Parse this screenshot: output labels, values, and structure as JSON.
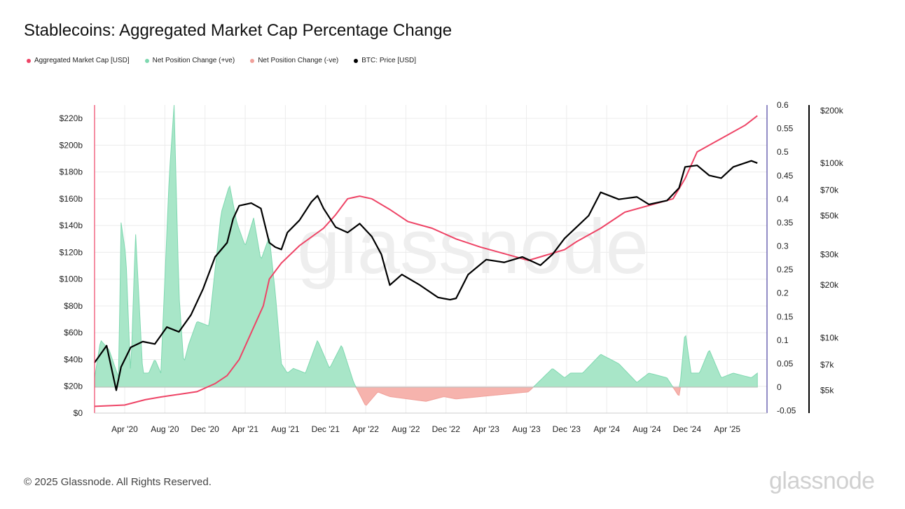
{
  "title": "Stablecoins: Aggregated Market Cap Percentage Change",
  "footer": "© 2025 Glassnode. All Rights Reserved.",
  "brand": "glassnode",
  "watermark": "glassnode",
  "legend": [
    {
      "label": "Aggregated Market Cap [USD]",
      "color": "#ee4466"
    },
    {
      "label": "Net Position Change (+ve)",
      "color": "#7fd8b0"
    },
    {
      "label": "Net Position Change (-ve)",
      "color": "#f0a09a"
    },
    {
      "label": "BTC: Price [USD]",
      "color": "#000000"
    }
  ],
  "chart_data": {
    "type": "line",
    "title": "Stablecoins: Aggregated Market Cap Percentage Change",
    "x_range": [
      "2020-01",
      "2025-06"
    ],
    "x_ticks": [
      "Apr '20",
      "Aug '20",
      "Dec '20",
      "Apr '21",
      "Aug '21",
      "Dec '21",
      "Apr '22",
      "Aug '22",
      "Dec '22",
      "Apr '23",
      "Aug '23",
      "Dec '23",
      "Apr '24",
      "Aug '24",
      "Dec '24",
      "Apr '25"
    ],
    "y_left": {
      "label": "Aggregated Market Cap [USD]",
      "ticks": [
        "$0",
        "$20b",
        "$40b",
        "$60b",
        "$80b",
        "$100b",
        "$120b",
        "$140b",
        "$160b",
        "$180b",
        "$200b",
        "$220b"
      ],
      "range": [
        0,
        230
      ]
    },
    "y_right": {
      "label": "Net Position Change",
      "ticks": [
        "-0.05",
        "0",
        "0.05",
        "0.1",
        "0.15",
        "0.2",
        "0.25",
        "0.3",
        "0.35",
        "0.4",
        "0.45",
        "0.5",
        "0.55",
        "0.6"
      ],
      "range": [
        -0.055,
        0.6
      ]
    },
    "y_right2": {
      "label": "BTC: Price [USD]",
      "scale": "log",
      "ticks": [
        "$5k",
        "$7k",
        "$10k",
        "$20k",
        "$30k",
        "$50k",
        "$70k",
        "$100k",
        "$200k"
      ],
      "tick_values": [
        5000,
        7000,
        10000,
        20000,
        30000,
        50000,
        70000,
        100000,
        200000
      ]
    },
    "series": [
      {
        "name": "Aggregated Market Cap [USD]",
        "axis": "left",
        "color": "#ee4466",
        "t": [
          2020.0,
          2020.25,
          2020.42,
          2020.55,
          2020.7,
          2020.85,
          2021.0,
          2021.1,
          2021.2,
          2021.3,
          2021.4,
          2021.45,
          2021.55,
          2021.7,
          2021.9,
          2022.0,
          2022.1,
          2022.2,
          2022.3,
          2022.45,
          2022.6,
          2022.8,
          2023.0,
          2023.2,
          2023.4,
          2023.6,
          2023.75,
          2023.9,
          2024.0,
          2024.2,
          2024.4,
          2024.6,
          2024.8,
          2024.9,
          2025.0,
          2025.2,
          2025.4,
          2025.5
        ],
        "values": [
          5,
          6,
          10,
          12,
          14,
          16,
          22,
          28,
          40,
          60,
          80,
          100,
          112,
          125,
          138,
          148,
          160,
          162,
          160,
          152,
          143,
          138,
          130,
          124,
          119,
          114,
          118,
          122,
          128,
          138,
          150,
          155,
          160,
          175,
          195,
          205,
          215,
          222
        ]
      },
      {
        "name": "Net Position Change (+ve/-ve)",
        "axis": "right",
        "type": "area",
        "t": [
          2020.0,
          2020.05,
          2020.12,
          2020.2,
          2020.22,
          2020.26,
          2020.3,
          2020.34,
          2020.4,
          2020.45,
          2020.5,
          2020.55,
          2020.62,
          2020.66,
          2020.7,
          2020.74,
          2020.78,
          2020.85,
          2020.95,
          2021.05,
          2021.12,
          2021.18,
          2021.25,
          2021.32,
          2021.38,
          2021.45,
          2021.5,
          2021.55,
          2021.6,
          2021.65,
          2021.75,
          2021.85,
          2021.95,
          2022.05,
          2022.15,
          2022.25,
          2022.35,
          2022.45,
          2022.6,
          2022.75,
          2022.9,
          2023.0,
          2023.2,
          2023.4,
          2023.6,
          2023.8,
          2023.9,
          2023.95,
          2024.05,
          2024.2,
          2024.35,
          2024.5,
          2024.6,
          2024.75,
          2024.85,
          2024.9,
          2024.95,
          2025.02,
          2025.1,
          2025.2,
          2025.3,
          2025.45,
          2025.5
        ],
        "values": [
          0.02,
          0.1,
          0.08,
          0.02,
          0.35,
          0.28,
          0.02,
          0.33,
          0.03,
          0.03,
          0.06,
          0.03,
          0.45,
          0.6,
          0.2,
          0.05,
          0.09,
          0.14,
          0.13,
          0.37,
          0.43,
          0.35,
          0.3,
          0.36,
          0.27,
          0.32,
          0.2,
          0.05,
          0.03,
          0.04,
          0.03,
          0.1,
          0.04,
          0.09,
          0.01,
          -0.04,
          -0.01,
          -0.02,
          -0.025,
          -0.03,
          -0.02,
          -0.025,
          -0.02,
          -0.015,
          -0.01,
          0.04,
          0.02,
          0.03,
          0.03,
          0.07,
          0.05,
          0.01,
          0.03,
          0.02,
          -0.02,
          0.12,
          0.03,
          0.03,
          0.08,
          0.02,
          0.03,
          0.02,
          0.03
        ]
      },
      {
        "name": "BTC: Price [USD]",
        "axis": "right2",
        "color": "#000000",
        "t": [
          2020.0,
          2020.1,
          2020.18,
          2020.22,
          2020.3,
          2020.4,
          2020.5,
          2020.6,
          2020.7,
          2020.8,
          2020.9,
          2021.0,
          2021.1,
          2021.15,
          2021.2,
          2021.3,
          2021.38,
          2021.45,
          2021.5,
          2021.55,
          2021.6,
          2021.7,
          2021.8,
          2021.85,
          2021.9,
          2022.0,
          2022.1,
          2022.2,
          2022.3,
          2022.38,
          2022.45,
          2022.55,
          2022.7,
          2022.85,
          2022.95,
          2023.0,
          2023.1,
          2023.25,
          2023.4,
          2023.55,
          2023.7,
          2023.8,
          2023.9,
          2024.0,
          2024.1,
          2024.2,
          2024.35,
          2024.5,
          2024.6,
          2024.75,
          2024.85,
          2024.9,
          2025.0,
          2025.1,
          2025.2,
          2025.3,
          2025.45,
          2025.5
        ],
        "values": [
          7200,
          9000,
          5000,
          6800,
          8800,
          9500,
          9200,
          11500,
          10800,
          13500,
          19000,
          29000,
          35000,
          48000,
          57000,
          59000,
          55000,
          35000,
          33000,
          32000,
          40000,
          47000,
          60000,
          65000,
          55000,
          43000,
          40000,
          45000,
          38000,
          30000,
          20000,
          23000,
          20000,
          17000,
          16500,
          16800,
          23000,
          28000,
          27000,
          29000,
          26000,
          30000,
          37000,
          43000,
          50000,
          68000,
          62000,
          64000,
          58000,
          61000,
          72000,
          95000,
          97000,
          85000,
          82000,
          95000,
          103000,
          100000
        ]
      }
    ]
  }
}
